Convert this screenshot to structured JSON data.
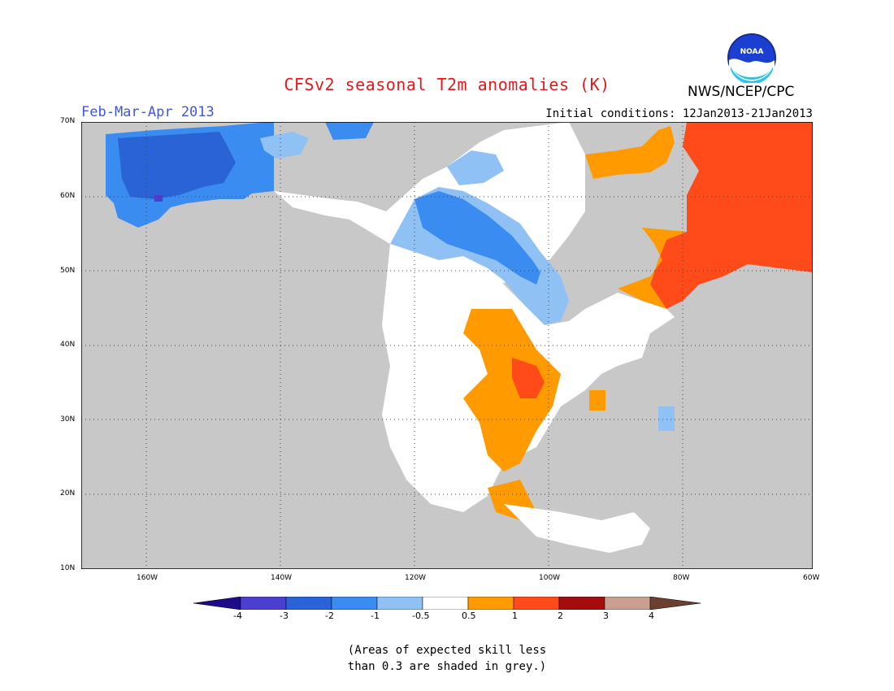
{
  "header": {
    "title": "CFSv2 seasonal T2m anomalies (K)",
    "season": "Feb-Mar-Apr 2013",
    "initial_conditions": "Initial conditions: 12Jan2013-21Jan2013",
    "agency": "NWS/NCEP/CPC",
    "logo_text": "NOAA"
  },
  "map": {
    "lat_labels": [
      "70N",
      "60N",
      "50N",
      "40N",
      "30N",
      "20N",
      "10N"
    ],
    "lon_labels": [
      "160W",
      "140W",
      "120W",
      "100W",
      "80W",
      "60W"
    ]
  },
  "legend": {
    "labels": [
      "-4",
      "-3",
      "-2",
      "-1",
      "-0.5",
      "0.5",
      "1",
      "2",
      "3",
      "4"
    ],
    "colors": [
      "#1f0a8a",
      "#4a3fcf",
      "#2a63d6",
      "#3a8cf0",
      "#8fc1f4",
      "#ffffff",
      "#ff9a00",
      "#ff4a1a",
      "#a30d0d",
      "#c9a08f",
      "#6b4030"
    ]
  },
  "note": {
    "line1": "(Areas of expected skill less",
    "line2": "than 0.3 are shaded in grey.)"
  }
}
